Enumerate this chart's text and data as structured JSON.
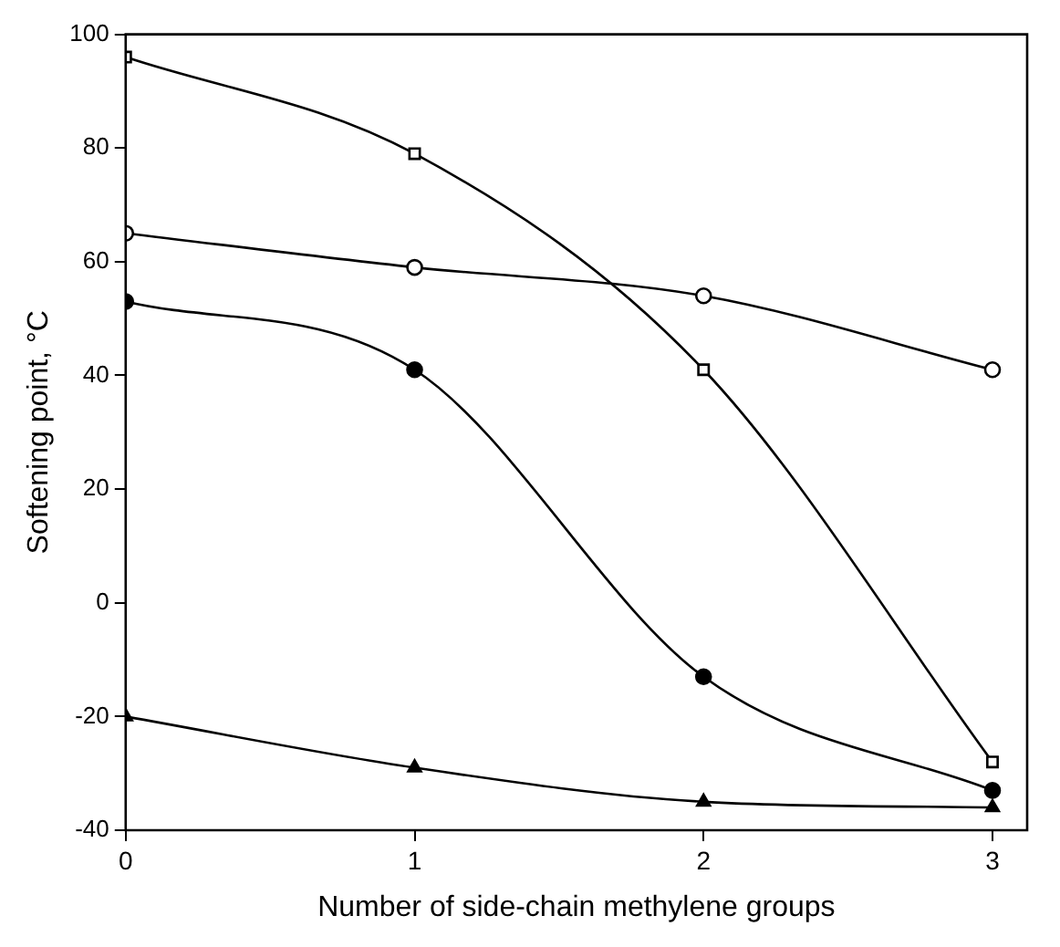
{
  "chart_data": {
    "type": "line",
    "xlabel": "Number of side-chain methylene groups",
    "ylabel": "Softening point, °C",
    "x": [
      0,
      1,
      2,
      3
    ],
    "series": [
      {
        "color": "#000000",
        "values": [
          96,
          79,
          41,
          -28
        ],
        "marker": "square"
      },
      {
        "color": "#000000",
        "values": [
          65,
          59,
          54,
          41
        ],
        "marker": "circle"
      },
      {
        "color": "#000000",
        "values": [
          53,
          41,
          -13,
          -33
        ],
        "marker": "circle"
      },
      {
        "color": "#000000",
        "values": [
          -20,
          -29,
          -35,
          -36
        ],
        "marker": "triangle"
      }
    ],
    "xlim": [
      0,
      3.12
    ],
    "xticks": [
      0,
      1,
      2,
      3
    ],
    "ylim": [
      -40,
      100
    ],
    "yticks": [
      -40,
      -20,
      0,
      20,
      40,
      60,
      80,
      100
    ],
    "grid": false,
    "legend": false,
    "line_style": "solid"
  }
}
